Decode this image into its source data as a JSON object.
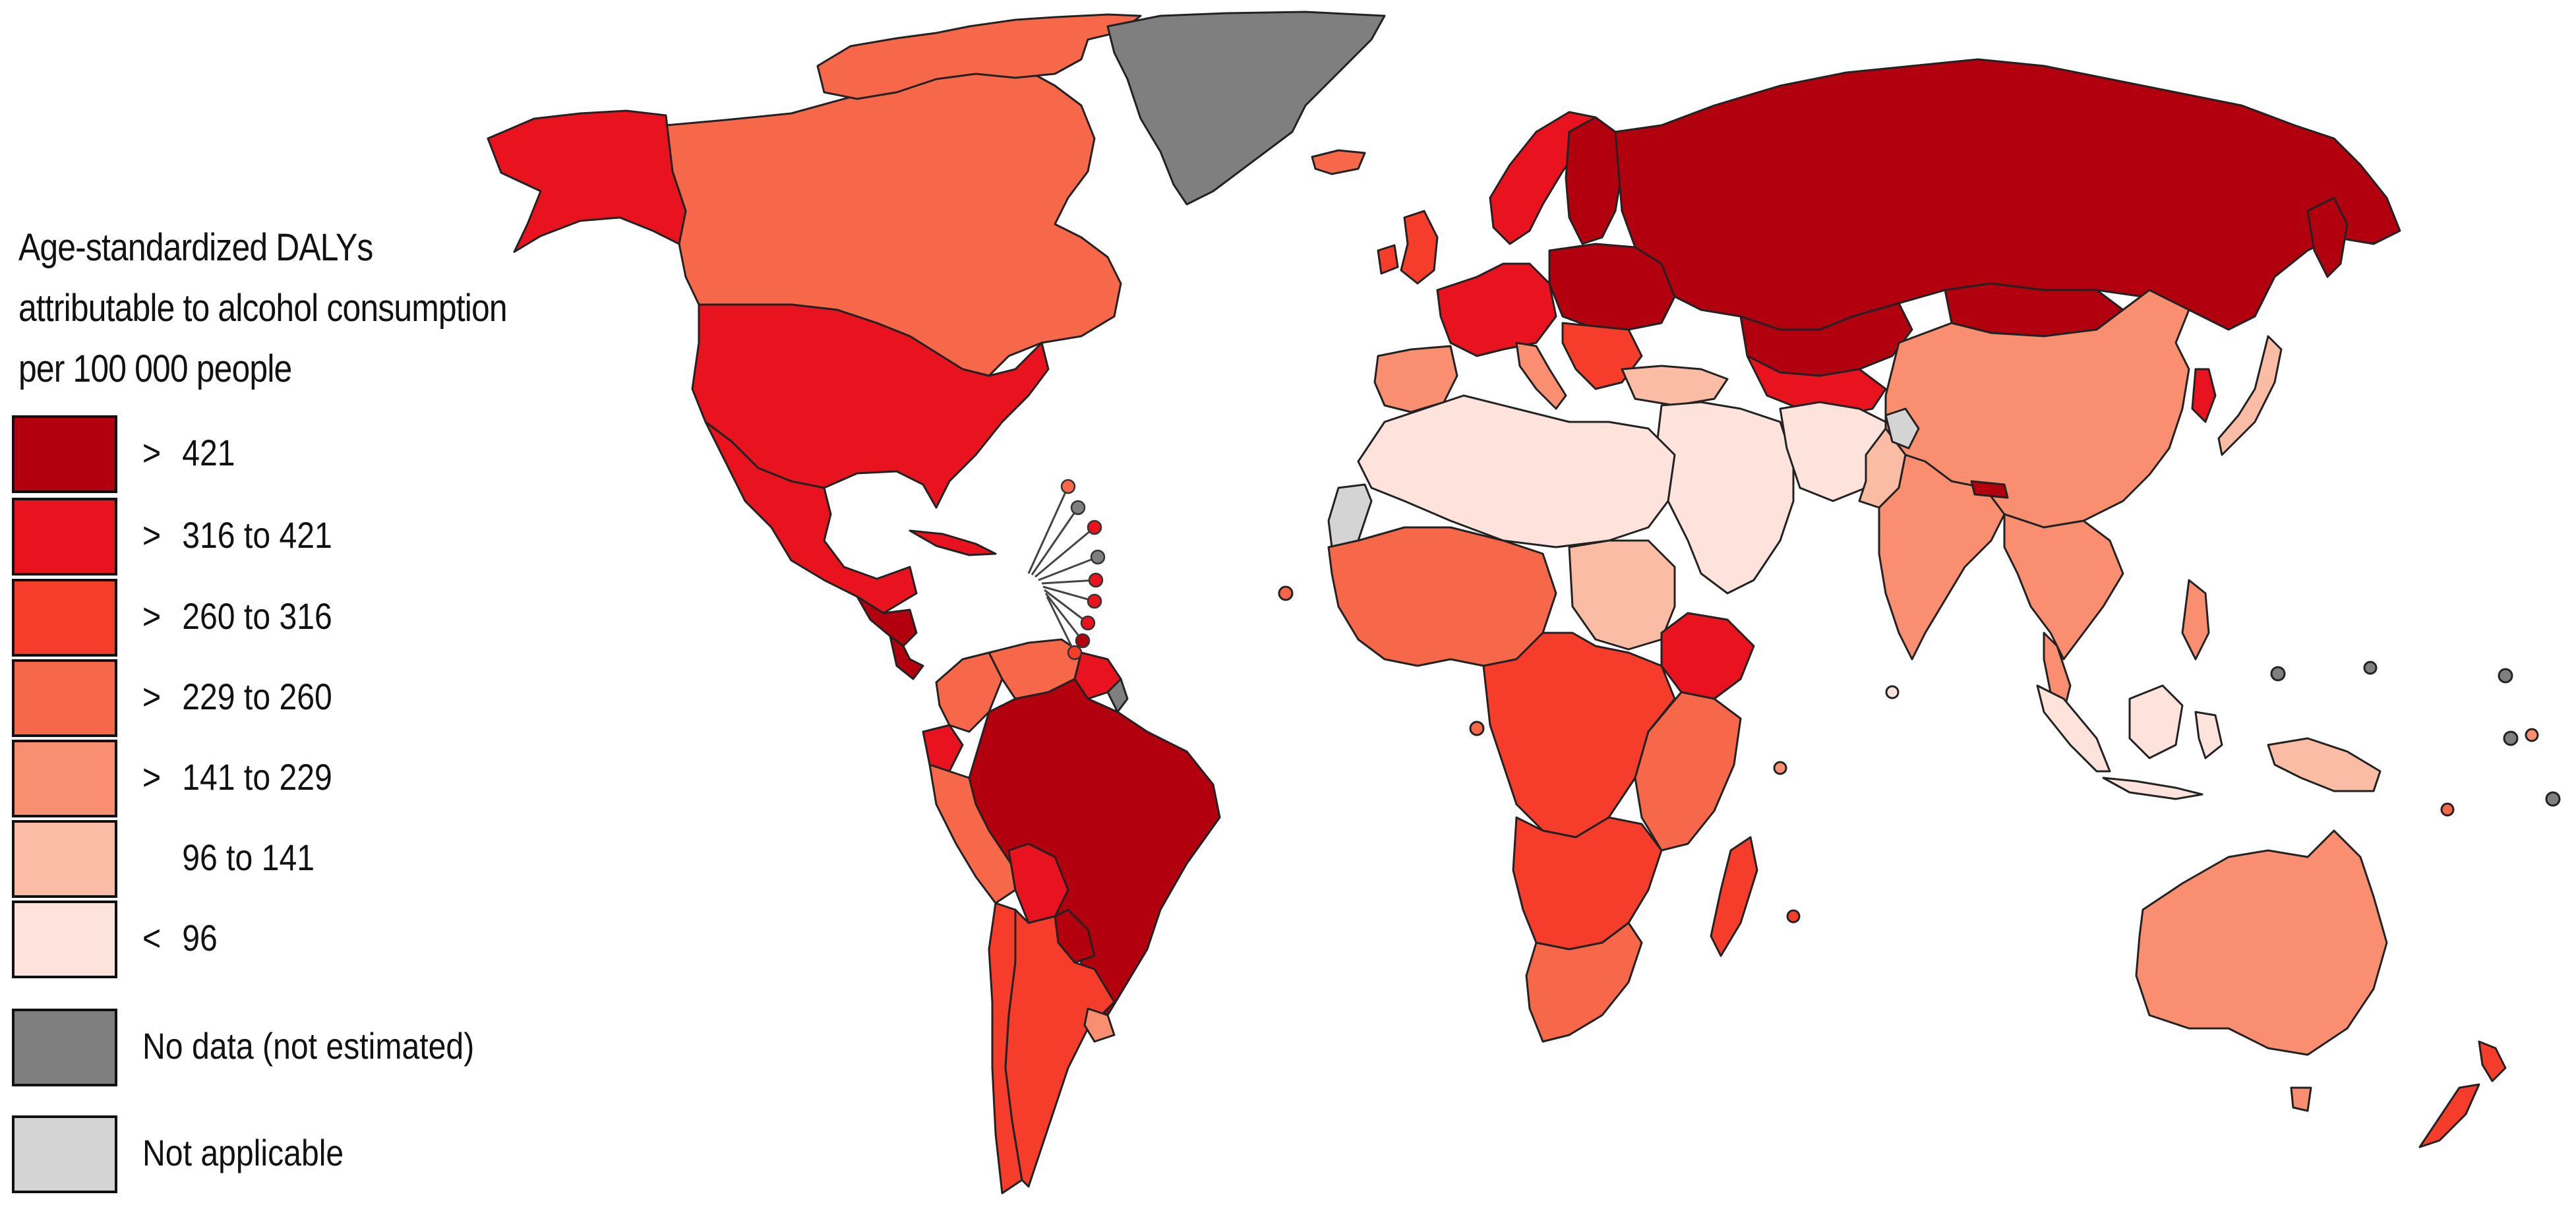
{
  "legend": {
    "title_lines": [
      "Age-standardized DALYs",
      "attributable to alcohol consumption",
      "per 100 000 people"
    ],
    "items": [
      {
        "id": "gt421",
        "symbol": ">",
        "label": "421",
        "color": "#b3000f"
      },
      {
        "id": "316_421",
        "symbol": ">",
        "label": "316 to 421",
        "color": "#e8131f"
      },
      {
        "id": "260_316",
        "symbol": ">",
        "label": "260 to 316",
        "color": "#f63c2b"
      },
      {
        "id": "229_260",
        "symbol": ">",
        "label": "229 to 260",
        "color": "#f7674a"
      },
      {
        "id": "141_229",
        "symbol": ">",
        "label": "141 to 229",
        "color": "#f98f70"
      },
      {
        "id": "96_141",
        "symbol": "",
        "label": "96 to 141",
        "color": "#fbbca5"
      },
      {
        "id": "lt96",
        "symbol": "<",
        "label": "96",
        "color": "#fde3dc"
      },
      {
        "id": "nodata",
        "symbol": "",
        "label": "No data (not estimated)",
        "color": "#7f7f7f"
      },
      {
        "id": "na",
        "symbol": "",
        "label": "Not applicable",
        "color": "#d4d4d4"
      }
    ]
  },
  "map": {
    "regions": [
      {
        "name": "canada",
        "category": "229_260"
      },
      {
        "name": "alaska-usa",
        "category": "316_421"
      },
      {
        "name": "usa",
        "category": "316_421"
      },
      {
        "name": "mexico",
        "category": "316_421"
      },
      {
        "name": "central-america",
        "category": "gt421"
      },
      {
        "name": "cuba",
        "category": "316_421"
      },
      {
        "name": "greenland",
        "category": "nodata"
      },
      {
        "name": "iceland",
        "category": "229_260"
      },
      {
        "name": "colombia",
        "category": "229_260"
      },
      {
        "name": "venezuela",
        "category": "229_260"
      },
      {
        "name": "guyana-suriname",
        "category": "316_421"
      },
      {
        "name": "french-guiana",
        "category": "nodata"
      },
      {
        "name": "ecuador",
        "category": "316_421"
      },
      {
        "name": "peru",
        "category": "229_260"
      },
      {
        "name": "brazil",
        "category": "gt421"
      },
      {
        "name": "bolivia",
        "category": "316_421"
      },
      {
        "name": "paraguay",
        "category": "gt421"
      },
      {
        "name": "chile",
        "category": "260_316"
      },
      {
        "name": "argentina",
        "category": "260_316"
      },
      {
        "name": "uruguay",
        "category": "141_229"
      },
      {
        "name": "uk-ireland",
        "category": "260_316"
      },
      {
        "name": "scandinavia",
        "category": "316_421"
      },
      {
        "name": "finland-baltics",
        "category": "gt421"
      },
      {
        "name": "western-europe",
        "category": "316_421"
      },
      {
        "name": "iberia",
        "category": "141_229"
      },
      {
        "name": "eastern-europe",
        "category": "gt421"
      },
      {
        "name": "balkans",
        "category": "260_316"
      },
      {
        "name": "italy",
        "category": "141_229"
      },
      {
        "name": "russia",
        "category": "gt421"
      },
      {
        "name": "kazakhstan",
        "category": "gt421"
      },
      {
        "name": "central-asia",
        "category": "316_421"
      },
      {
        "name": "mongolia",
        "category": "gt421"
      },
      {
        "name": "china",
        "category": "141_229"
      },
      {
        "name": "korea",
        "category": "316_421"
      },
      {
        "name": "japan",
        "category": "96_141"
      },
      {
        "name": "turkey",
        "category": "96_141"
      },
      {
        "name": "middle-east",
        "category": "lt96"
      },
      {
        "name": "iran-afghanistan",
        "category": "lt96"
      },
      {
        "name": "pakistan",
        "category": "96_141"
      },
      {
        "name": "kashmir",
        "category": "na"
      },
      {
        "name": "india",
        "category": "141_229"
      },
      {
        "name": "nepal",
        "category": "gt421"
      },
      {
        "name": "southeast-asia",
        "category": "141_229"
      },
      {
        "name": "indonesia",
        "category": "lt96"
      },
      {
        "name": "philippines",
        "category": "141_229"
      },
      {
        "name": "papua-new-guinea",
        "category": "96_141"
      },
      {
        "name": "australia",
        "category": "141_229"
      },
      {
        "name": "new-zealand",
        "category": "260_316"
      },
      {
        "name": "north-africa",
        "category": "lt96"
      },
      {
        "name": "western-sahara",
        "category": "na"
      },
      {
        "name": "west-africa",
        "category": "229_260"
      },
      {
        "name": "sudan",
        "category": "96_141"
      },
      {
        "name": "ethiopia",
        "category": "316_421"
      },
      {
        "name": "central-africa",
        "category": "260_316"
      },
      {
        "name": "east-africa",
        "category": "229_260"
      },
      {
        "name": "southern-africa",
        "category": "260_316"
      },
      {
        "name": "south-africa",
        "category": "229_260"
      },
      {
        "name": "madagascar",
        "category": "260_316"
      }
    ],
    "caribbean_callouts": [
      {
        "name": "caribbean-island-1",
        "category": "229_260"
      },
      {
        "name": "caribbean-island-2",
        "category": "nodata"
      },
      {
        "name": "caribbean-island-3",
        "category": "316_421"
      },
      {
        "name": "caribbean-island-4",
        "category": "nodata"
      },
      {
        "name": "caribbean-island-5",
        "category": "316_421"
      },
      {
        "name": "caribbean-island-6",
        "category": "316_421"
      },
      {
        "name": "caribbean-island-7",
        "category": "316_421"
      },
      {
        "name": "caribbean-island-8",
        "category": "gt421"
      },
      {
        "name": "caribbean-island-9",
        "category": "260_316"
      }
    ],
    "small_islands": [
      {
        "name": "cape-verde",
        "category": "229_260"
      },
      {
        "name": "sao-tome",
        "category": "229_260"
      },
      {
        "name": "comoros",
        "category": "141_229"
      },
      {
        "name": "mauritius",
        "category": "260_316"
      },
      {
        "name": "maldives",
        "category": "lt96"
      },
      {
        "name": "pacific-island-1",
        "category": "nodata"
      },
      {
        "name": "pacific-island-2",
        "category": "nodata"
      },
      {
        "name": "pacific-island-3",
        "category": "nodata"
      },
      {
        "name": "pacific-island-4",
        "category": "141_229"
      },
      {
        "name": "pacific-island-5",
        "category": "229_260"
      },
      {
        "name": "pacific-island-6",
        "category": "nodata"
      },
      {
        "name": "pacific-island-7",
        "category": "nodata"
      }
    ]
  }
}
